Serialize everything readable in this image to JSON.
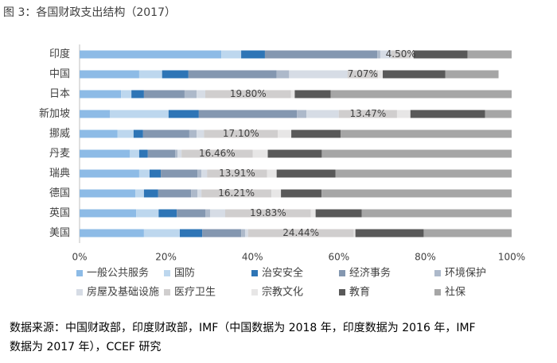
{
  "chart_data": {
    "type": "stacked_barh",
    "title": "图 3：各国财政支出结构（2017）",
    "note": [
      "数据来源：中国财政部，印度财政部，IMF（中国数据为 2018 年，印度数据为 2016 年，IMF",
      "数据为 2017 年），CCEF 研究"
    ],
    "categories": [
      "印度",
      "中国",
      "日本",
      "新加坡",
      "挪威",
      "丹麦",
      "瑞典",
      "德国",
      "英国",
      "美国"
    ],
    "series": [
      {
        "name": "一般公共服务",
        "color": "#8dbbe6",
        "values": [
          32.8,
          13.8,
          9.6,
          7,
          8.8,
          11.6,
          13.8,
          12.9,
          13.1,
          14.9
        ]
      },
      {
        "name": "国防",
        "color": "#bdd7ee",
        "values": [
          4.6,
          5.3,
          2.4,
          13.6,
          3.7,
          2.2,
          2.4,
          2,
          5.2,
          8.3
        ]
      },
      {
        "name": "治安安全",
        "color": "#2e75b6",
        "values": [
          5.5,
          6.1,
          2.9,
          7,
          2.2,
          2,
          2.6,
          3.3,
          4.2,
          5.2
        ]
      },
      {
        "name": "经济事务",
        "color": "#8497b0",
        "values": [
          26,
          20.4,
          9.4,
          22.7,
          10.7,
          6.3,
          8.5,
          7.6,
          6.6,
          9
        ]
      },
      {
        "name": "环境保护",
        "color": "#adb9ca",
        "values": [
          0.7,
          2.9,
          2.8,
          2.2,
          1.7,
          0.6,
          0.9,
          1.5,
          1.1,
          0.9
        ]
      },
      {
        "name": "房屋及基础设施",
        "color": "#d6dce5",
        "values": [
          2.5,
          13.5,
          2,
          7.5,
          1.7,
          0.9,
          1.3,
          0.9,
          3.5,
          0.7
        ]
      },
      {
        "name": "医疗卫生",
        "color": "#d0cece",
        "values": [
          4.5,
          7.07,
          19.8,
          13.47,
          17.1,
          16.46,
          13.91,
          16.21,
          19.83,
          24.44
        ],
        "value_labels": [
          "4.50%",
          "7.07%",
          "19.80%",
          "13.47%",
          "17.10%",
          "16.46%",
          "13.91%",
          "16.21%",
          "19.83%",
          "24.44%"
        ]
      },
      {
        "name": "宗教文化",
        "color": "#e7e6e6",
        "values": [
          0.7,
          1.1,
          0.9,
          3.1,
          3.1,
          3.5,
          2.2,
          2.2,
          1.1,
          0.4
        ]
      },
      {
        "name": "教育",
        "color": "#595959",
        "values": [
          12.5,
          14.5,
          8.3,
          17.3,
          11.4,
          12.5,
          13.6,
          9.4,
          10.7,
          15.8
        ]
      },
      {
        "name": "社保",
        "color": "#a6a6a6",
        "values": [
          10.2,
          12.3,
          41.9,
          6.1,
          39.6,
          43.94,
          40.79,
          43.99,
          34.67,
          20.36
        ]
      }
    ],
    "xlim": [
      0,
      100
    ],
    "xticks": [
      {
        "value": 0,
        "label": "0%"
      },
      {
        "value": 20,
        "label": "20%"
      },
      {
        "value": 40,
        "label": "40%"
      },
      {
        "value": 60,
        "label": "60%"
      },
      {
        "value": 80,
        "label": "80%"
      },
      {
        "value": 100,
        "label": "100%"
      }
    ],
    "grid": false
  }
}
